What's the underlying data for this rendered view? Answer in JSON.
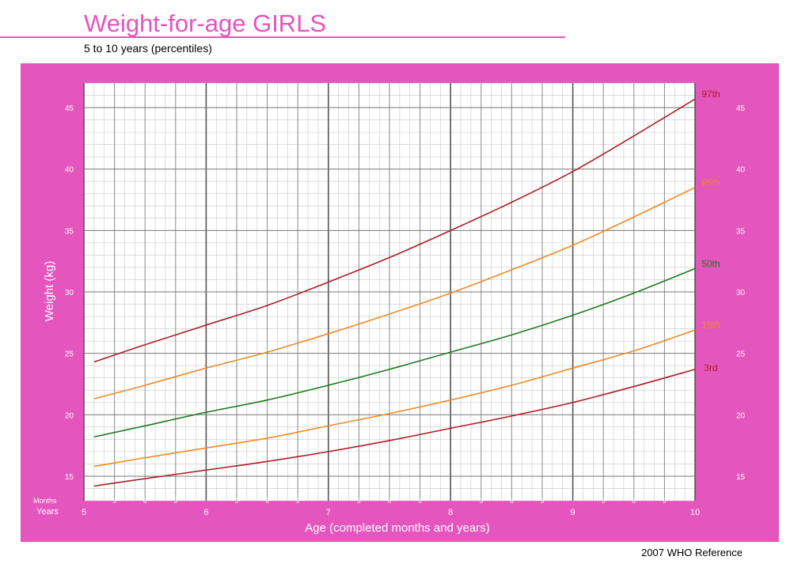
{
  "header": {
    "title": "Weight-for-age  GIRLS",
    "subtitle": "5 to 10 years (percentiles)"
  },
  "footer": {
    "reference": "2007 WHO Reference"
  },
  "colors": {
    "brand_pink": "#e455bd",
    "title_pink": "#e455bd",
    "grid_major": "#777777",
    "grid_minor": "#c8c8c8",
    "p97": "#b01d26",
    "p85": "#f08a24",
    "p50": "#1e7a1e",
    "p15": "#f08a24",
    "p3": "#b01d26"
  },
  "chart_data": {
    "type": "line",
    "xlabel": "Age (completed months and years)",
    "ylabel": "Weight (kg)",
    "x_unit": "months",
    "xlim": [
      60,
      120
    ],
    "ylim": [
      13,
      47
    ],
    "y_ticks": [
      15,
      20,
      25,
      30,
      35,
      40,
      45
    ],
    "year_ticks": [
      {
        "label": "5",
        "month": 60
      },
      {
        "label": "6",
        "month": 72
      },
      {
        "label": "7",
        "month": 84
      },
      {
        "label": "8",
        "month": 96
      },
      {
        "label": "9",
        "month": 108
      },
      {
        "label": "10",
        "month": 120
      }
    ],
    "month_ticks": [
      "3",
      "6",
      "9"
    ],
    "months_row_label": "Months",
    "years_row_label": "Years",
    "grid": true,
    "series": [
      {
        "name": "97th",
        "color_key": "p97",
        "x": [
          61,
          66,
          72,
          78,
          84,
          90,
          96,
          102,
          108,
          114,
          120
        ],
        "y": [
          24.3,
          25.7,
          27.3,
          28.9,
          30.8,
          32.8,
          35.0,
          37.3,
          39.8,
          42.7,
          45.7
        ]
      },
      {
        "name": "85th",
        "color_key": "p85",
        "x": [
          61,
          66,
          72,
          78,
          84,
          90,
          96,
          102,
          108,
          114,
          120
        ],
        "y": [
          21.3,
          22.4,
          23.8,
          25.1,
          26.6,
          28.2,
          29.9,
          31.8,
          33.8,
          36.1,
          38.5
        ]
      },
      {
        "name": "50th",
        "color_key": "p50",
        "x": [
          61,
          66,
          72,
          78,
          84,
          90,
          96,
          102,
          108,
          114,
          120
        ],
        "y": [
          18.2,
          19.1,
          20.2,
          21.2,
          22.4,
          23.7,
          25.1,
          26.5,
          28.1,
          29.9,
          31.9
        ]
      },
      {
        "name": "15th",
        "color_key": "p15",
        "x": [
          61,
          66,
          72,
          78,
          84,
          90,
          96,
          102,
          108,
          114,
          120
        ],
        "y": [
          15.8,
          16.5,
          17.3,
          18.1,
          19.1,
          20.1,
          21.2,
          22.4,
          23.8,
          25.2,
          26.9
        ]
      },
      {
        "name": "3rd",
        "color_key": "p3",
        "x": [
          61,
          66,
          72,
          78,
          84,
          90,
          96,
          102,
          108,
          114,
          120
        ],
        "y": [
          14.2,
          14.8,
          15.5,
          16.2,
          17.0,
          17.9,
          18.9,
          19.9,
          21.0,
          22.3,
          23.7
        ]
      }
    ]
  }
}
